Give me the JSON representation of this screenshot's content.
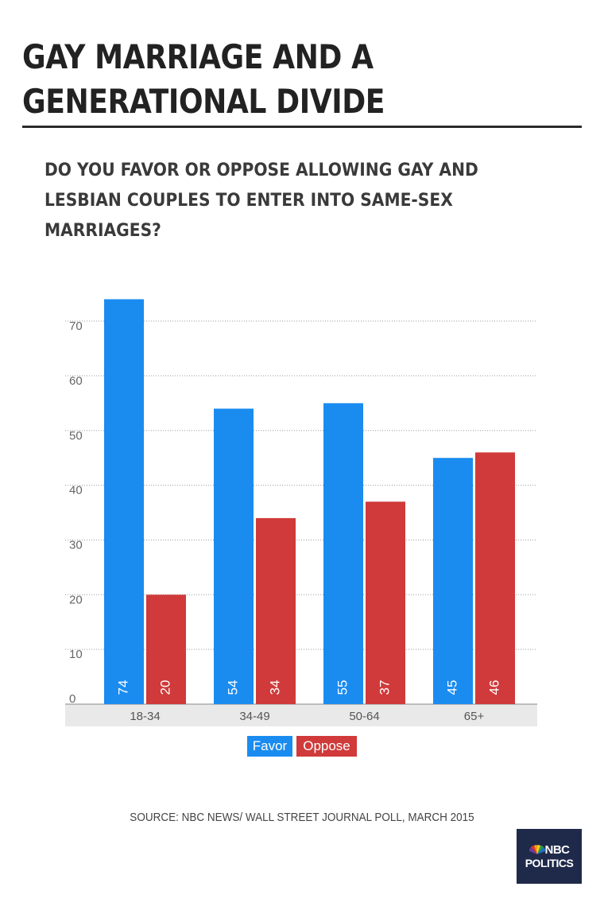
{
  "title_lines": [
    "GAY MARRIAGE AND A",
    "GENERATIONAL DIVIDE"
  ],
  "question_lines": [
    "DO YOU FAVOR OR OPPOSE ALLOWING GAY AND",
    "LESBIAN COUPLES TO ENTER INTO SAME-SEX",
    "MARRIAGES?"
  ],
  "source": "SOURCE: NBC NEWS/ WALL STREET JOURNAL POLL, MARCH 2015",
  "logo": {
    "line1": "NBC",
    "line2": "POLITICS"
  },
  "colors": {
    "favor": "#1a8cf0",
    "oppose": "#d03a3a",
    "axis_band": "#e9e9e9",
    "grid": "#9a9a9a"
  },
  "chart_data": {
    "type": "bar",
    "title": "",
    "xlabel": "",
    "ylabel": "",
    "categories": [
      "18-34",
      "34-49",
      "50-64",
      "65+"
    ],
    "series": [
      {
        "name": "Favor",
        "values": [
          74,
          54,
          55,
          45
        ]
      },
      {
        "name": "Oppose",
        "values": [
          20,
          34,
          37,
          46
        ]
      }
    ],
    "yticks": [
      0,
      10,
      20,
      30,
      40,
      50,
      60,
      70
    ],
    "ylim": [
      0,
      74
    ],
    "grid": true,
    "legend": "bottom-center"
  }
}
